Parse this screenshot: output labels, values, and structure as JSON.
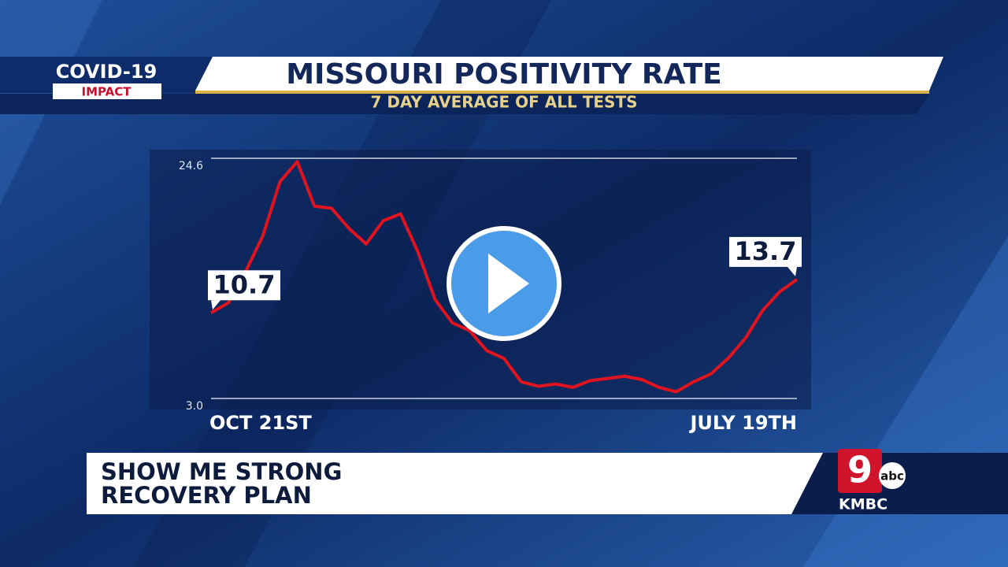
{
  "logo": {
    "top": "COVID-19",
    "bottom": "IMPACT"
  },
  "chart_data": {
    "type": "line",
    "title": "MISSOURI POSITIVITY RATE",
    "subtitle": "7 DAY AVERAGE OF ALL TESTS",
    "categories": [
      "OCT 21ST",
      null,
      null,
      null,
      null,
      null,
      null,
      null,
      null,
      null,
      null,
      null,
      null,
      null,
      null,
      null,
      null,
      null,
      null,
      null,
      null,
      null,
      null,
      null,
      null,
      null,
      null,
      null,
      null,
      null,
      null,
      null,
      null,
      null,
      "JULY 19TH"
    ],
    "values": [
      10.7,
      11.6,
      14.4,
      17.6,
      22.5,
      24.3,
      20.3,
      20.1,
      18.3,
      16.9,
      19.0,
      19.6,
      16.2,
      11.9,
      9.8,
      9.1,
      7.3,
      6.6,
      4.5,
      4.1,
      4.3,
      4.0,
      4.6,
      4.8,
      5.0,
      4.7,
      4.0,
      3.6,
      4.5,
      5.2,
      6.6,
      8.4,
      10.9,
      12.6,
      13.7
    ],
    "color": "#e0141e",
    "ylim": [
      3.0,
      24.6
    ],
    "yticks": [
      {
        "value": 3,
        "label": "3.0"
      },
      24.6
    ],
    "grid": true
  },
  "lower_third": {
    "lines": [
      "SHOW ME STRONG",
      "RECOVERY PLAN"
    ]
  },
  "station": {
    "channel": "9",
    "network": "abc",
    "name": "KMBC"
  }
}
